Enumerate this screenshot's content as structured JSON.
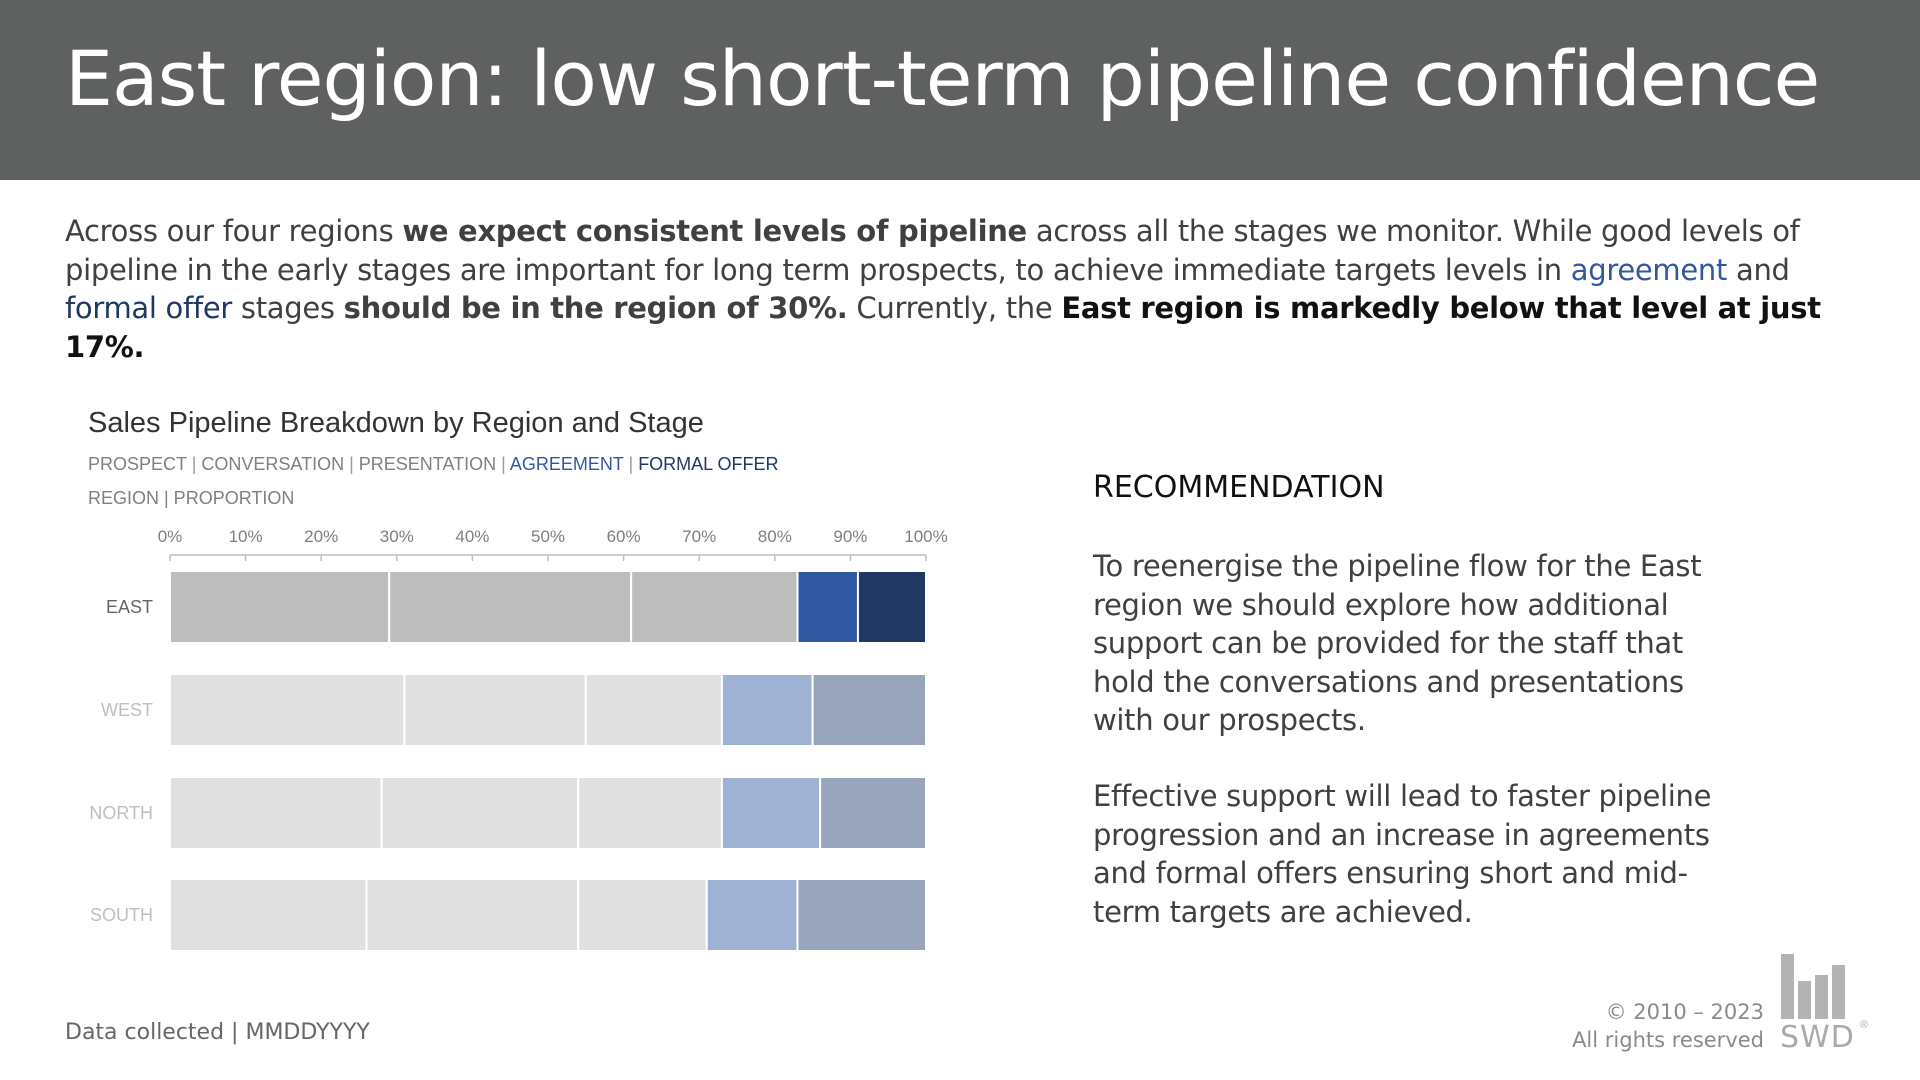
{
  "header": {
    "title": "East region: low short-term pipeline confidence",
    "background": "#5f6160"
  },
  "intro": {
    "t1": "Across our four regions ",
    "t2": "we expect consistent levels of pipeline",
    "t3": " across all the stages we monitor. While good levels of pipeline in the early stages are important for long term prospects, to achieve immediate targets levels in ",
    "t4": "agreement",
    "t5": " and ",
    "t6": "formal offer",
    "t7": " stages ",
    "t8": "should be in the region of 30%.",
    "t9": " Currently, the ",
    "t10": "East region is markedly below that level at just 17%."
  },
  "chart_data": {
    "type": "bar",
    "orientation": "horizontal",
    "stacked": true,
    "title": "Sales Pipeline Breakdown by Region and Stage",
    "legend": {
      "items": [
        "PROSPECT",
        "CONVERSATION",
        "PRESENTATION",
        "AGREEMENT",
        "FORMAL OFFER"
      ],
      "separator": " | "
    },
    "axis_caption": {
      "items": [
        "REGION",
        "PROPORTION"
      ],
      "separator": " | "
    },
    "categories": [
      "EAST",
      "WEST",
      "NORTH",
      "SOUTH"
    ],
    "xlim": [
      0,
      100
    ],
    "xticks": [
      "0%",
      "10%",
      "20%",
      "30%",
      "40%",
      "50%",
      "60%",
      "70%",
      "80%",
      "90%",
      "100%"
    ],
    "highlight_category": "EAST",
    "series": [
      {
        "name": "PROSPECT",
        "values": [
          29,
          31,
          28,
          26
        ]
      },
      {
        "name": "CONVERSATION",
        "values": [
          32,
          24,
          26,
          28
        ]
      },
      {
        "name": "PRESENTATION",
        "values": [
          22,
          18,
          19,
          17
        ]
      },
      {
        "name": "AGREEMENT",
        "values": [
          8,
          12,
          13,
          12
        ]
      },
      {
        "name": "FORMAL OFFER",
        "values": [
          9,
          15,
          14,
          17
        ]
      }
    ],
    "colors": {
      "highlight": [
        "#bdbdbd",
        "#bdbdbd",
        "#bdbdbd",
        "#3358a2",
        "#1f3864"
      ],
      "muted": [
        "#e0e0e0",
        "#e0e0e0",
        "#e0e0e0",
        "#a0b2d4",
        "#98a4ba"
      ],
      "label_highlight": "#666666",
      "label_muted": "#bfbfbf",
      "legend_grey": "#808080",
      "legend_agreement": "#3358a2",
      "legend_formal": "#1f3864"
    },
    "grid": false
  },
  "recommendation": {
    "heading": "RECOMMENDATION",
    "p1": "To reenergise the pipeline flow for the East region we should explore how additional support can be provided for the staff that hold the conversations and presentations with our prospects.",
    "p2": "Effective support will lead to faster pipeline progression and an increase in agreements and formal offers ensuring short and mid-term targets are achieved."
  },
  "footer": {
    "note": "Data collected | MMDDYYYY",
    "copyright_line1": "© 2010 – 2023",
    "copyright_line2": "All rights reserved",
    "logo_text": "SWD",
    "logo_mark": "®"
  }
}
